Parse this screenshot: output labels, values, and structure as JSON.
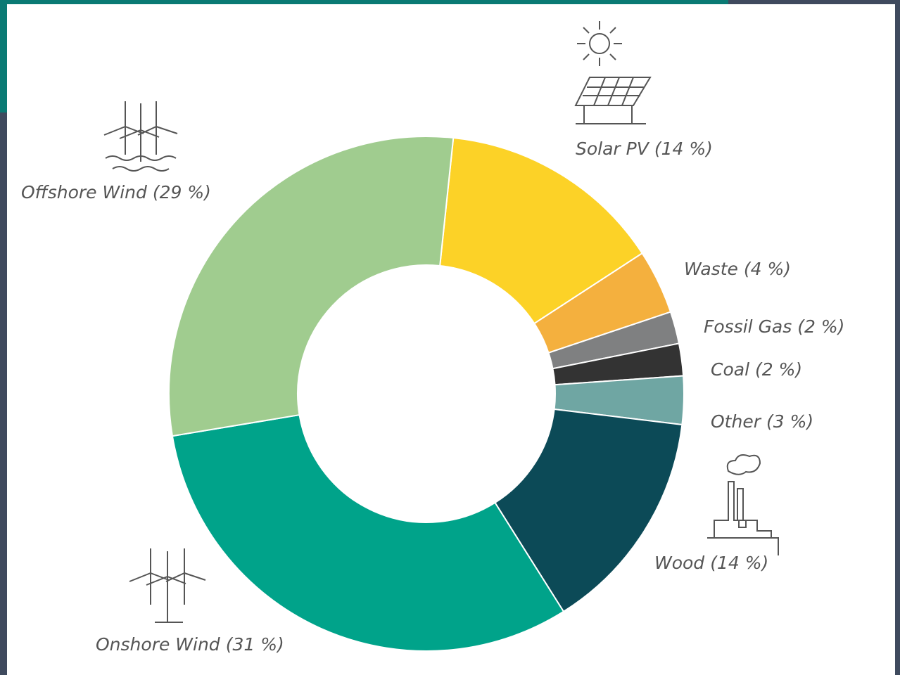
{
  "chart_data": {
    "type": "donut",
    "categories": [
      "Solar PV",
      "Waste",
      "Fossil Gas",
      "Coal",
      "Other",
      "Wood",
      "Onshore Wind",
      "Offshore Wind"
    ],
    "values": [
      14,
      4,
      2,
      2,
      3,
      14,
      31,
      29
    ],
    "value_labels": [
      "(14 %)",
      "(4 %)",
      "(2 %)",
      "(2 %)",
      "(3 %)",
      "(14 %)",
      "(31 %)",
      "(29 %)"
    ],
    "colors": [
      "#fcd227",
      "#f4b03e",
      "#7f8081",
      "#333333",
      "#6fa6a3",
      "#0c4a57",
      "#00a38a",
      "#a0cc8f"
    ]
  }
}
